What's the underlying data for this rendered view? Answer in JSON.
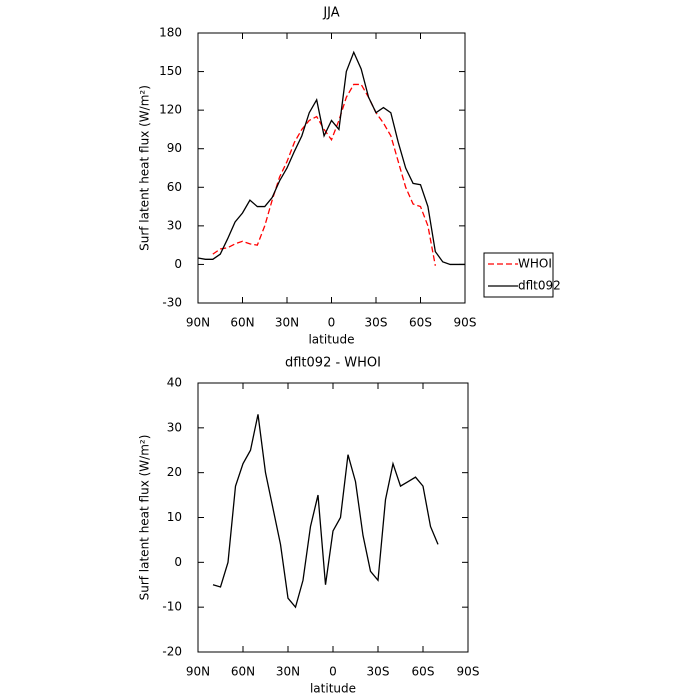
{
  "chart_data": [
    {
      "type": "line",
      "title": "JJA",
      "x_label": "latitude",
      "y_label": "Surf latent heat flux (W/m²)",
      "x": [
        90,
        85,
        80,
        75,
        70,
        65,
        60,
        55,
        50,
        45,
        40,
        35,
        30,
        25,
        20,
        15,
        10,
        5,
        0,
        -5,
        -10,
        -15,
        -20,
        -25,
        -30,
        -35,
        -40,
        -45,
        -50,
        -55,
        -60,
        -65,
        -70,
        -75,
        -80,
        -85,
        -90
      ],
      "series": [
        {
          "name": "WHOI",
          "color": "#ff0000",
          "dashed": true,
          "values": [
            null,
            null,
            8,
            12,
            13,
            16,
            18,
            16,
            15,
            30,
            50,
            68,
            80,
            95,
            105,
            112,
            115,
            105,
            97,
            112,
            130,
            140,
            140,
            130,
            118,
            110,
            100,
            80,
            60,
            47,
            45,
            30,
            -1,
            null,
            null,
            null,
            null
          ]
        },
        {
          "name": "dflt092",
          "color": "#000000",
          "dashed": false,
          "values": [
            5,
            4,
            4,
            8,
            20,
            33,
            40,
            50,
            45,
            45,
            52,
            65,
            75,
            88,
            100,
            118,
            128,
            100,
            112,
            105,
            150,
            165,
            152,
            130,
            118,
            122,
            118,
            95,
            75,
            63,
            62,
            45,
            10,
            2,
            0,
            0,
            0
          ]
        }
      ],
      "xlim": [
        90,
        -90
      ],
      "xticks": [
        {
          "value": 90,
          "label": "90N"
        },
        {
          "value": 60,
          "label": "60N"
        },
        {
          "value": 30,
          "label": "30N"
        },
        0,
        {
          "value": -30,
          "label": "30S"
        },
        {
          "value": -60,
          "label": "60S"
        },
        {
          "value": -90,
          "label": "90S"
        }
      ],
      "ylim": [
        -30,
        180
      ],
      "yticks": [
        -30,
        0,
        30,
        60,
        90,
        120,
        150,
        180
      ],
      "legend": "right"
    },
    {
      "type": "line",
      "title": "dflt092 - WHOI",
      "x_label": "latitude",
      "y_label": "Surf latent heat flux (W/m²)",
      "x": [
        80,
        75,
        70,
        65,
        60,
        55,
        50,
        45,
        40,
        35,
        30,
        25,
        20,
        15,
        10,
        5,
        0,
        -5,
        -10,
        -15,
        -20,
        -25,
        -30,
        -35,
        -40,
        -45,
        -50,
        -55,
        -60,
        -65,
        -70
      ],
      "values": [
        -5,
        -5.5,
        0,
        17,
        22,
        25,
        33,
        20,
        12,
        4,
        -8,
        -10,
        -4,
        8,
        15,
        -5,
        7,
        10,
        24,
        18,
        6,
        -2,
        -4,
        14,
        22,
        17,
        18,
        19,
        17,
        8,
        4
      ],
      "color": "#000000",
      "xlim": [
        90,
        -90
      ],
      "xticks": [
        {
          "value": 90,
          "label": "90N"
        },
        {
          "value": 60,
          "label": "60N"
        },
        {
          "value": 30,
          "label": "30N"
        },
        0,
        {
          "value": -30,
          "label": "30S"
        },
        {
          "value": -60,
          "label": "60S"
        },
        {
          "value": -90,
          "label": "90S"
        }
      ],
      "ylim": [
        -20,
        40
      ],
      "yticks": [
        -20,
        -10,
        0,
        10,
        20,
        30,
        40
      ]
    }
  ]
}
